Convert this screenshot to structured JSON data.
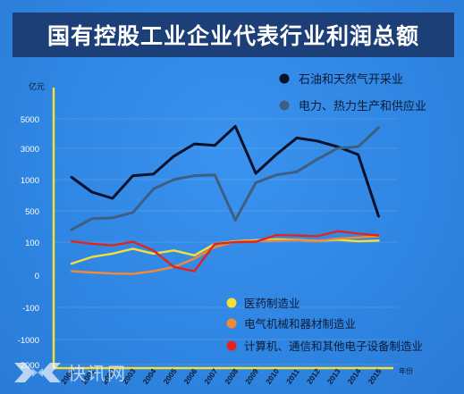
{
  "chart_data": {
    "type": "line",
    "title": "国有控股工业企业代表行业利润总额",
    "y_unit": "亿元",
    "x_unit": "年份",
    "categories": [
      "2000",
      "2001",
      "2002",
      "2003",
      "2004",
      "2005",
      "2006",
      "2007",
      "2008",
      "2009",
      "2010",
      "2011",
      "2012",
      "2013",
      "2014",
      "2015"
    ],
    "y_tick_labels": [
      "5000",
      "3000",
      "1000",
      "500",
      "100",
      "0",
      "-100",
      "-1000",
      "-2000"
    ],
    "series": [
      {
        "name": "石油和天然气开采业",
        "color": "#07122a",
        "values": [
          1150,
          800,
          700,
          1250,
          1350,
          2500,
          3300,
          3200,
          4500,
          1400,
          2600,
          3700,
          3500,
          3100,
          2600,
          430
        ]
      },
      {
        "name": "电力、热力生产和供应业",
        "color": "#3d5f83",
        "values": [
          260,
          400,
          410,
          480,
          850,
          1000,
          1250,
          1300,
          380,
          950,
          1300,
          1500,
          2300,
          3000,
          3100,
          4400
        ]
      },
      {
        "name": "医药制造业",
        "color": "#f3df3a",
        "values": [
          35,
          55,
          65,
          80,
          65,
          75,
          60,
          95,
          110,
          125,
          135,
          130,
          115,
          130,
          110,
          120
        ]
      },
      {
        "name": "电气机械和器材制造业",
        "color": "#f08a36",
        "values": [
          12,
          8,
          5,
          4,
          12,
          25,
          50,
          85,
          105,
          115,
          120,
          125,
          110,
          145,
          160,
          175
        ]
      },
      {
        "name": "计算机、通信和其他电子设备制造业",
        "color": "#e0251c",
        "values": [
          110,
          95,
          90,
          105,
          75,
          25,
          12,
          95,
          100,
          105,
          190,
          185,
          175,
          240,
          210,
          185
        ]
      }
    ]
  },
  "legend": {
    "top": [
      {
        "label": "石油和天然气开采业",
        "color": "#07122a"
      },
      {
        "label": "电力、热力生产和供应业",
        "color": "#3d5f83"
      }
    ],
    "bottom": [
      {
        "label": "医药制造业",
        "color": "#f3df3a"
      },
      {
        "label": "电气机械和器材制造业",
        "color": "#f08a36"
      },
      {
        "label": "计算机、通信和其他电子设备制造业",
        "color": "#e0251c"
      }
    ]
  },
  "watermark": {
    "brand": "KX",
    "text": "快讯网"
  },
  "colors": {
    "axis": "#f3df3a",
    "title_bg": "#1c3f78",
    "background": "#2f86e3"
  }
}
